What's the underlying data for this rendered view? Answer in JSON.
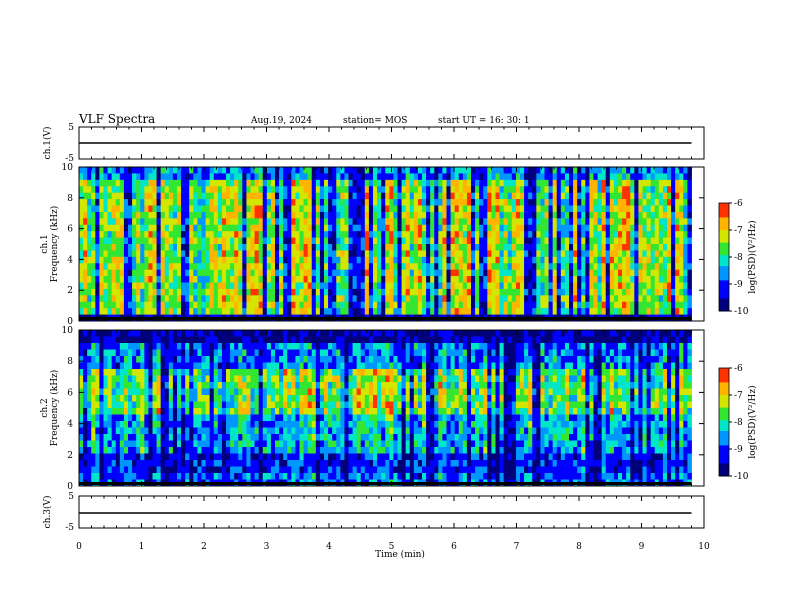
{
  "header": {
    "title": "VLF Spectra",
    "date": "Aug.19, 2024",
    "station": "station= MOS",
    "start_ut": "start  UT =   16: 30: 1"
  },
  "chart_data": [
    {
      "type": "line",
      "name": "ch1-waveform",
      "ylabel": "ch.1(V)",
      "ylim": [
        -5,
        5
      ],
      "y_ticks": [
        "5",
        "-5"
      ],
      "x_range_min": [
        0,
        9.8
      ],
      "level_v": 0
    },
    {
      "type": "heatmap",
      "name": "ch1-spectrogram",
      "ylabel_line1": "ch.1",
      "ylabel_line2": "Frequency (kHz)",
      "ylim": [
        0,
        10
      ],
      "y_ticks": [
        "0",
        "2",
        "4",
        "6",
        "8",
        "10"
      ],
      "x_range_min": [
        0,
        9.8
      ],
      "colorbar": {
        "label": "log(PSD)(V²/Hz)",
        "ticks": [
          "-6",
          "-7",
          "-8",
          "-9",
          "-10"
        ],
        "range": [
          -10,
          -6
        ]
      }
    },
    {
      "type": "heatmap",
      "name": "ch2-spectrogram",
      "ylabel_line1": "ch.2",
      "ylabel_line2": "Frequency (kHz)",
      "ylim": [
        0,
        10
      ],
      "y_ticks": [
        "0",
        "2",
        "4",
        "6",
        "8",
        "10"
      ],
      "x_range_min": [
        0,
        9.8
      ],
      "colorbar": {
        "label": "log(PSD)(V²/Hz)",
        "ticks": [
          "-6",
          "-7",
          "-8",
          "-9",
          "-10"
        ],
        "range": [
          -10,
          -6
        ]
      }
    },
    {
      "type": "line",
      "name": "ch3-waveform",
      "ylabel": "ch.3(V)",
      "ylim": [
        -5,
        5
      ],
      "y_ticks": [
        "5",
        "-5"
      ],
      "x_range_min": [
        0,
        9.8
      ],
      "level_v": 0
    }
  ],
  "xaxis": {
    "label": "Time  (min)",
    "ticks": [
      "0",
      "1",
      "2",
      "3",
      "4",
      "5",
      "6",
      "7",
      "8",
      "9",
      "10"
    ],
    "range": [
      0,
      10
    ]
  }
}
